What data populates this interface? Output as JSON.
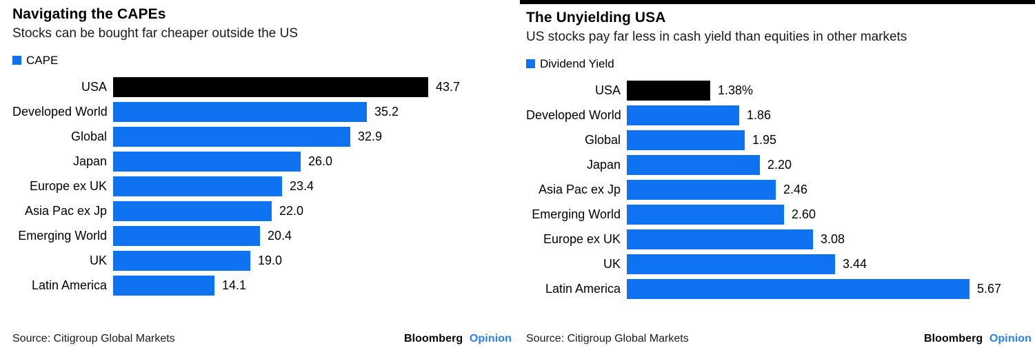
{
  "colors": {
    "bar_blue": "#0f72f0",
    "bar_highlight": "#000000",
    "opinion_blue": "#2d7ff0",
    "rule_black": "#000000"
  },
  "branding": {
    "name": "Bloomberg",
    "unit": "Opinion"
  },
  "charts": [
    {
      "title": "Navigating the CAPEs",
      "subtitle": "Stocks can be bought far cheaper outside the US",
      "source": "Source: Citigroup Global Markets",
      "chart_data": {
        "type": "bar",
        "orientation": "horizontal",
        "legend": "CAPE",
        "legend_position": "top-left",
        "grid": false,
        "categories": [
          "USA",
          "Developed World",
          "Global",
          "Japan",
          "Europe ex UK",
          "Asia Pac ex Jp",
          "Emerging World",
          "UK",
          "Latin America"
        ],
        "values": [
          43.7,
          35.2,
          32.9,
          26.0,
          23.4,
          22.0,
          20.4,
          19.0,
          14.1
        ],
        "value_labels": [
          "43.7",
          "35.2",
          "32.9",
          "26.0",
          "23.4",
          "22.0",
          "20.4",
          "19.0",
          "14.1"
        ],
        "highlight_category": "USA",
        "xlim": [
          0,
          43.7
        ]
      }
    },
    {
      "title": "The Unyielding USA",
      "subtitle": "US stocks pay far less in cash yield than equities in other markets",
      "source": "Source: Citigroup Global Markets",
      "chart_data": {
        "type": "bar",
        "orientation": "horizontal",
        "legend": "Dividend Yield",
        "legend_position": "top-left",
        "grid": false,
        "categories": [
          "USA",
          "Developed World",
          "Global",
          "Japan",
          "Asia Pac ex Jp",
          "Emerging World",
          "Europe ex UK",
          "UK",
          "Latin America"
        ],
        "values": [
          1.38,
          1.86,
          1.95,
          2.2,
          2.46,
          2.6,
          3.08,
          3.44,
          5.67
        ],
        "value_labels": [
          "1.38%",
          "1.86",
          "1.95",
          "2.20",
          "2.46",
          "2.60",
          "3.08",
          "3.44",
          "5.67"
        ],
        "highlight_category": "USA",
        "xlim": [
          0,
          5.67
        ]
      }
    }
  ]
}
